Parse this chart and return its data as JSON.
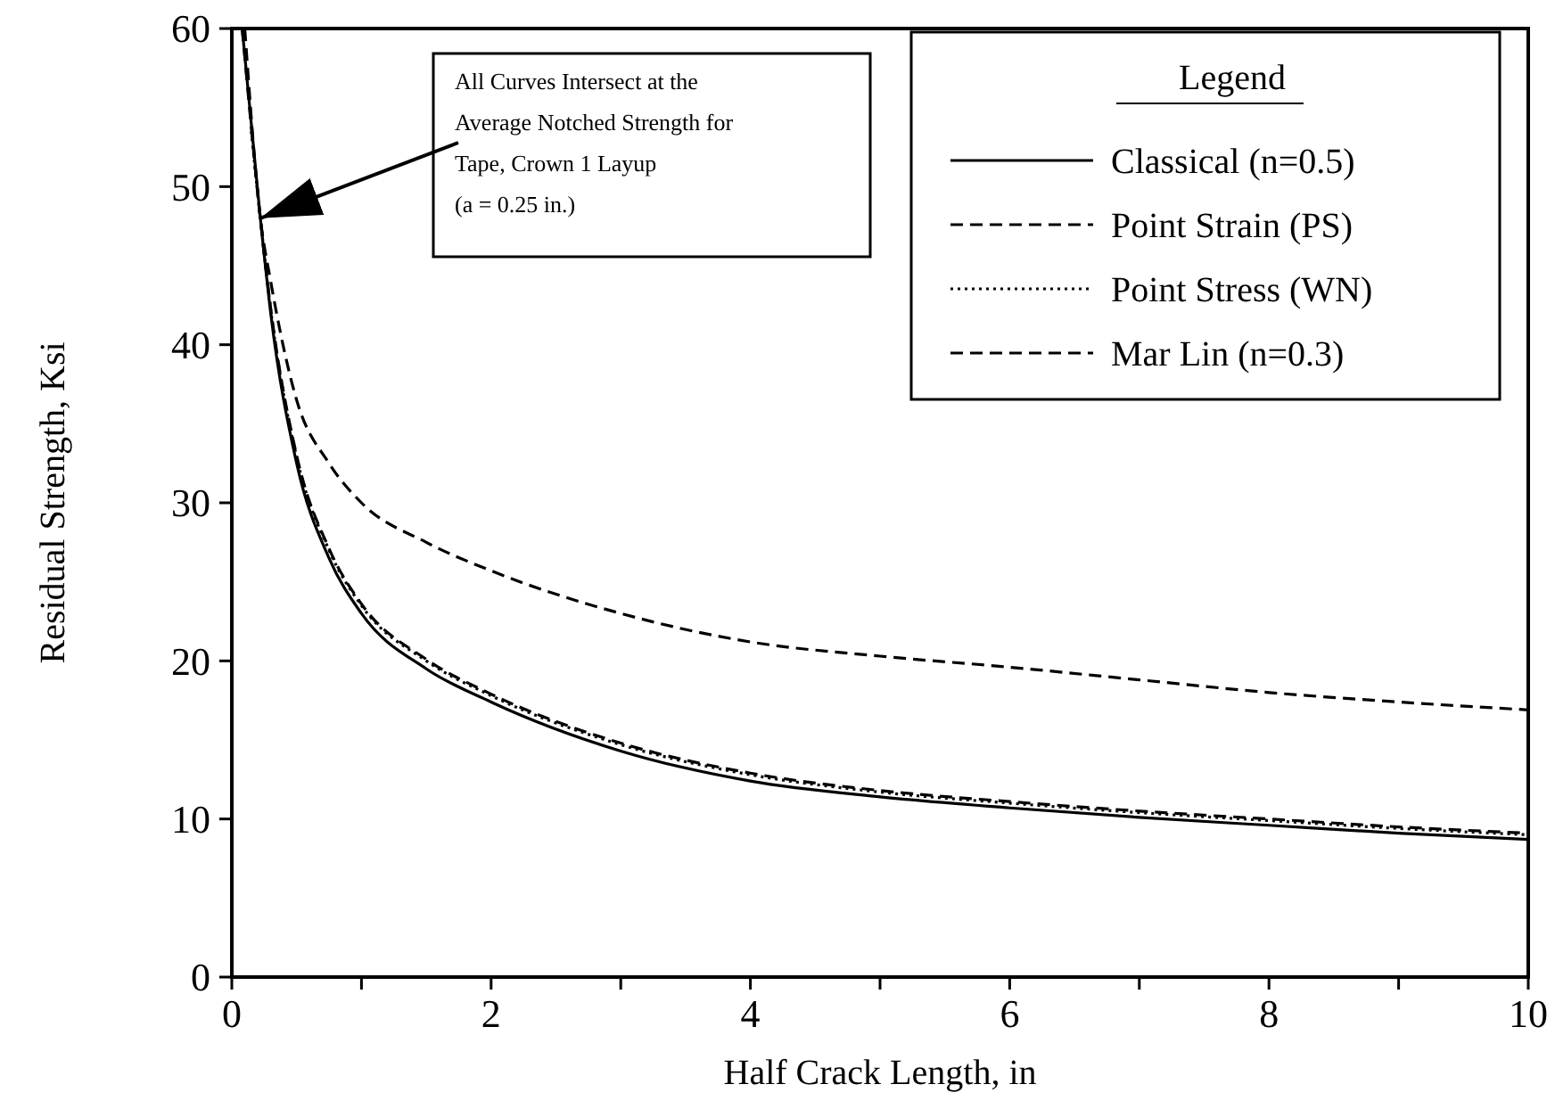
{
  "chart_data": {
    "type": "line",
    "xlabel": "Half Crack Length, in",
    "ylabel": "Residual Strength, Ksi",
    "legend_title": "Legend",
    "legend": "top right",
    "grid": false,
    "xlim": [
      0,
      10
    ],
    "ylim": [
      0,
      60
    ],
    "xticks": [
      0,
      {
        "value": 1,
        "label": null
      },
      2,
      {
        "value": 3,
        "label": null
      },
      4,
      {
        "value": 5,
        "label": null
      },
      6,
      {
        "value": 7,
        "label": null
      },
      8,
      {
        "value": 9,
        "label": null
      },
      10
    ],
    "yticks": [
      0,
      10,
      20,
      30,
      40,
      50,
      60
    ],
    "annotations": [
      {
        "text": "All Curves Intersect at the\nAverage Notched Strength for\nTape, Crown 1 Layup\n(a = 0.25 in.)",
        "x": 0.22,
        "y": 48
      }
    ],
    "series": [
      {
        "name": "Classical (n=0.5)",
        "color": "#000000",
        "line_style": "solid",
        "x": [
          0.08,
          0.22,
          0.3,
          0.5,
          0.75,
          1,
          1.5,
          2,
          3,
          4,
          5,
          6,
          7,
          8,
          9,
          10
        ],
        "values": [
          60,
          48,
          42,
          32.5,
          26.5,
          23,
          19.5,
          17.4,
          14.3,
          12.4,
          11.4,
          10.7,
          10.1,
          9.6,
          9.1,
          8.7
        ]
      },
      {
        "name": "Point Strain (PS)",
        "color": "#000000",
        "line_style": "dashed",
        "x": [
          0.08,
          0.22,
          0.3,
          0.5,
          0.75,
          1,
          1.5,
          2,
          3,
          4,
          5,
          6,
          7,
          8,
          9,
          10
        ],
        "values": [
          60,
          48,
          42.3,
          33,
          27.1,
          23.6,
          20.1,
          17.9,
          14.8,
          12.9,
          11.8,
          11.1,
          10.5,
          10,
          9.5,
          9.1
        ]
      },
      {
        "name": "Point Stress (WN)",
        "color": "#000000",
        "line_style": "dotted",
        "x": [
          0.15,
          0.22,
          0.3,
          0.5,
          0.75,
          1,
          1.5,
          2,
          3,
          4,
          5,
          6,
          7,
          8,
          9,
          10
        ],
        "values": [
          53.5,
          48,
          42.2,
          32.9,
          27,
          23.5,
          20,
          17.8,
          14.7,
          12.8,
          11.7,
          11,
          10.4,
          9.9,
          9.4,
          9
        ]
      },
      {
        "name": "Mar Lin (n=0.3)",
        "color": "#000000",
        "line_style": "dashed",
        "x": [
          0.1,
          0.22,
          0.3,
          0.5,
          0.75,
          1,
          1.5,
          2,
          3,
          4,
          5,
          6,
          7,
          8,
          9,
          10
        ],
        "values": [
          60,
          48,
          44,
          36.5,
          32.5,
          30,
          27.5,
          25.7,
          23,
          21.2,
          20.3,
          19.6,
          18.8,
          18,
          17.4,
          16.9
        ]
      }
    ]
  }
}
